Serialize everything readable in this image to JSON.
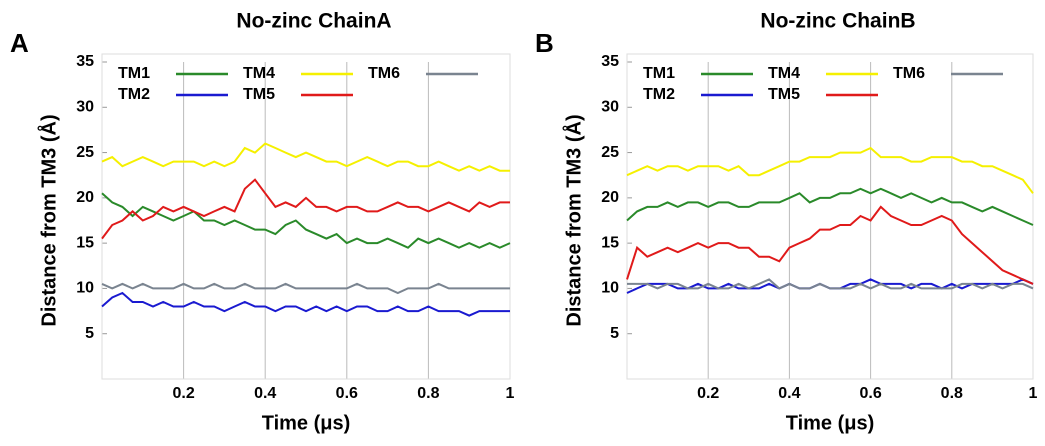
{
  "chart_data": [
    {
      "type": "line",
      "panel_label": "A",
      "title": "No-zinc ChainA",
      "x_label": "Time (μs)",
      "y_label": "Distance from TM3 (Å)",
      "xlim": [
        0,
        1
      ],
      "xticks": [
        0.2,
        0.4,
        0.6,
        0.8,
        1
      ],
      "ylim": [
        0,
        35
      ],
      "yticks": [
        5,
        10,
        15,
        20,
        25,
        30,
        35
      ],
      "grid": "x",
      "legend": "top-left",
      "x": [
        0,
        0.025,
        0.05,
        0.075,
        0.1,
        0.125,
        0.15,
        0.175,
        0.2,
        0.225,
        0.25,
        0.275,
        0.3,
        0.325,
        0.35,
        0.375,
        0.4,
        0.425,
        0.45,
        0.475,
        0.5,
        0.525,
        0.55,
        0.575,
        0.6,
        0.625,
        0.65,
        0.675,
        0.7,
        0.725,
        0.75,
        0.775,
        0.8,
        0.825,
        0.85,
        0.875,
        0.9,
        0.925,
        0.95,
        0.975,
        1
      ],
      "series": [
        {
          "name": "TM1",
          "color": "#2a8a2a",
          "values": [
            20.5,
            19.5,
            19,
            18,
            19,
            18.5,
            18,
            17.5,
            18,
            18.5,
            17.5,
            17.5,
            17,
            17.5,
            17,
            16.5,
            16.5,
            16,
            17,
            17.5,
            16.5,
            16,
            15.5,
            16,
            15,
            15.5,
            15,
            15,
            15.5,
            15,
            14.5,
            15.5,
            15,
            15.5,
            15,
            14.5,
            15,
            14.5,
            15,
            14.5,
            15
          ]
        },
        {
          "name": "TM2",
          "color": "#1a1ad0",
          "values": [
            8,
            9,
            9.5,
            8.5,
            8.5,
            8,
            8.5,
            8,
            8,
            8.5,
            8,
            8,
            7.5,
            8,
            8.5,
            8,
            8,
            7.5,
            8,
            8,
            7.5,
            8,
            7.5,
            8,
            7.5,
            8,
            8,
            7.5,
            7.5,
            8,
            7.5,
            7.5,
            8,
            7.5,
            7.5,
            7.5,
            7,
            7.5,
            7.5,
            7.5,
            7.5
          ]
        },
        {
          "name": "TM4",
          "color": "#f5f000",
          "values": [
            24,
            24.5,
            23.5,
            24,
            24.5,
            24,
            23.5,
            24,
            24,
            24,
            23.5,
            24,
            23.5,
            24,
            25.5,
            25,
            26,
            25.5,
            25,
            24.5,
            25,
            24.5,
            24,
            24,
            23.5,
            24,
            24.5,
            24,
            23.5,
            24,
            24,
            23.5,
            23.5,
            24,
            23.5,
            23,
            23.5,
            23,
            23.5,
            23,
            23
          ]
        },
        {
          "name": "TM5",
          "color": "#e01a1a",
          "values": [
            15.5,
            17,
            17.5,
            18.5,
            17.5,
            18,
            19,
            18.5,
            19,
            18.5,
            18,
            18.5,
            19,
            18.5,
            21,
            22,
            20.5,
            19,
            19.5,
            19,
            20,
            19,
            19,
            18.5,
            19,
            19,
            18.5,
            18.5,
            19,
            19.5,
            19,
            19,
            18.5,
            19,
            19.5,
            19,
            18.5,
            19.5,
            19,
            19.5,
            19.5
          ]
        },
        {
          "name": "TM6",
          "color": "#7a8490",
          "values": [
            10.5,
            10,
            10.5,
            10,
            10.5,
            10,
            10,
            10,
            10.5,
            10,
            10,
            10.5,
            10,
            10,
            10.5,
            10,
            10,
            10,
            10.5,
            10,
            10,
            10,
            10,
            10,
            10,
            10.5,
            10,
            10,
            10,
            9.5,
            10,
            10,
            10,
            10.5,
            10,
            10,
            10,
            10,
            10,
            10,
            10
          ]
        }
      ]
    },
    {
      "type": "line",
      "panel_label": "B",
      "title": "No-zinc ChainB",
      "x_label": "Time (μs)",
      "y_label": "Distance from TM3 (Å)",
      "xlim": [
        0,
        1
      ],
      "xticks": [
        0.2,
        0.4,
        0.6,
        0.8,
        1
      ],
      "ylim": [
        0,
        35
      ],
      "yticks": [
        5,
        10,
        15,
        20,
        25,
        30,
        35
      ],
      "grid": "x",
      "legend": "top-left",
      "x": [
        0,
        0.025,
        0.05,
        0.075,
        0.1,
        0.125,
        0.15,
        0.175,
        0.2,
        0.225,
        0.25,
        0.275,
        0.3,
        0.325,
        0.35,
        0.375,
        0.4,
        0.425,
        0.45,
        0.475,
        0.5,
        0.525,
        0.55,
        0.575,
        0.6,
        0.625,
        0.65,
        0.675,
        0.7,
        0.725,
        0.75,
        0.775,
        0.8,
        0.825,
        0.85,
        0.875,
        0.9,
        0.925,
        0.95,
        0.975,
        1
      ],
      "series": [
        {
          "name": "TM1",
          "color": "#2a8a2a",
          "values": [
            17.5,
            18.5,
            19,
            19,
            19.5,
            19,
            19.5,
            19.5,
            19,
            19.5,
            19.5,
            19,
            19,
            19.5,
            19.5,
            19.5,
            20,
            20.5,
            19.5,
            20,
            20,
            20.5,
            20.5,
            21,
            20.5,
            21,
            20.5,
            20,
            20.5,
            20,
            19.5,
            20,
            19.5,
            19.5,
            19,
            18.5,
            19,
            18.5,
            18,
            17.5,
            17
          ]
        },
        {
          "name": "TM2",
          "color": "#1a1ad0",
          "values": [
            9.5,
            10,
            10.5,
            10.5,
            10.5,
            10,
            10,
            10.5,
            10,
            10,
            10.5,
            10,
            10,
            10,
            10.5,
            10,
            10.5,
            10,
            10,
            10.5,
            10,
            10,
            10.5,
            10.5,
            11,
            10.5,
            10.5,
            10.5,
            10,
            10.5,
            10.5,
            10,
            10.5,
            10,
            10.5,
            10.5,
            10.5,
            10.5,
            10.5,
            11,
            10.5
          ]
        },
        {
          "name": "TM4",
          "color": "#f5f000",
          "values": [
            22.5,
            23,
            23.5,
            23,
            23.5,
            23.5,
            23,
            23.5,
            23.5,
            23.5,
            23,
            23.5,
            22.5,
            22.5,
            23,
            23.5,
            24,
            24,
            24.5,
            24.5,
            24.5,
            25,
            25,
            25,
            25.5,
            24.5,
            24.5,
            24.5,
            24,
            24,
            24.5,
            24.5,
            24.5,
            24,
            24,
            23.5,
            23.5,
            23,
            22.5,
            22,
            20.5
          ]
        },
        {
          "name": "TM5",
          "color": "#e01a1a",
          "values": [
            11,
            14.5,
            13.5,
            14,
            14.5,
            14,
            14.5,
            15,
            14.5,
            15,
            15,
            14.5,
            14.5,
            13.5,
            13.5,
            13,
            14.5,
            15,
            15.5,
            16.5,
            16.5,
            17,
            17,
            18,
            17.5,
            19,
            18,
            17.5,
            17,
            17,
            17.5,
            18,
            17.5,
            16,
            15,
            14,
            13,
            12,
            11.5,
            11,
            10.5
          ]
        },
        {
          "name": "TM6",
          "color": "#7a8490",
          "values": [
            10.5,
            10.5,
            10.5,
            10,
            10.5,
            10.5,
            10,
            10,
            10.5,
            10,
            10,
            10.5,
            10,
            10.5,
            11,
            10,
            10.5,
            10,
            10,
            10.5,
            10,
            10,
            10,
            10.5,
            10,
            10.5,
            10,
            10,
            10.5,
            10,
            10,
            10,
            10,
            10.5,
            10.5,
            10,
            10.5,
            10,
            10.5,
            10.5,
            10
          ]
        }
      ]
    }
  ]
}
